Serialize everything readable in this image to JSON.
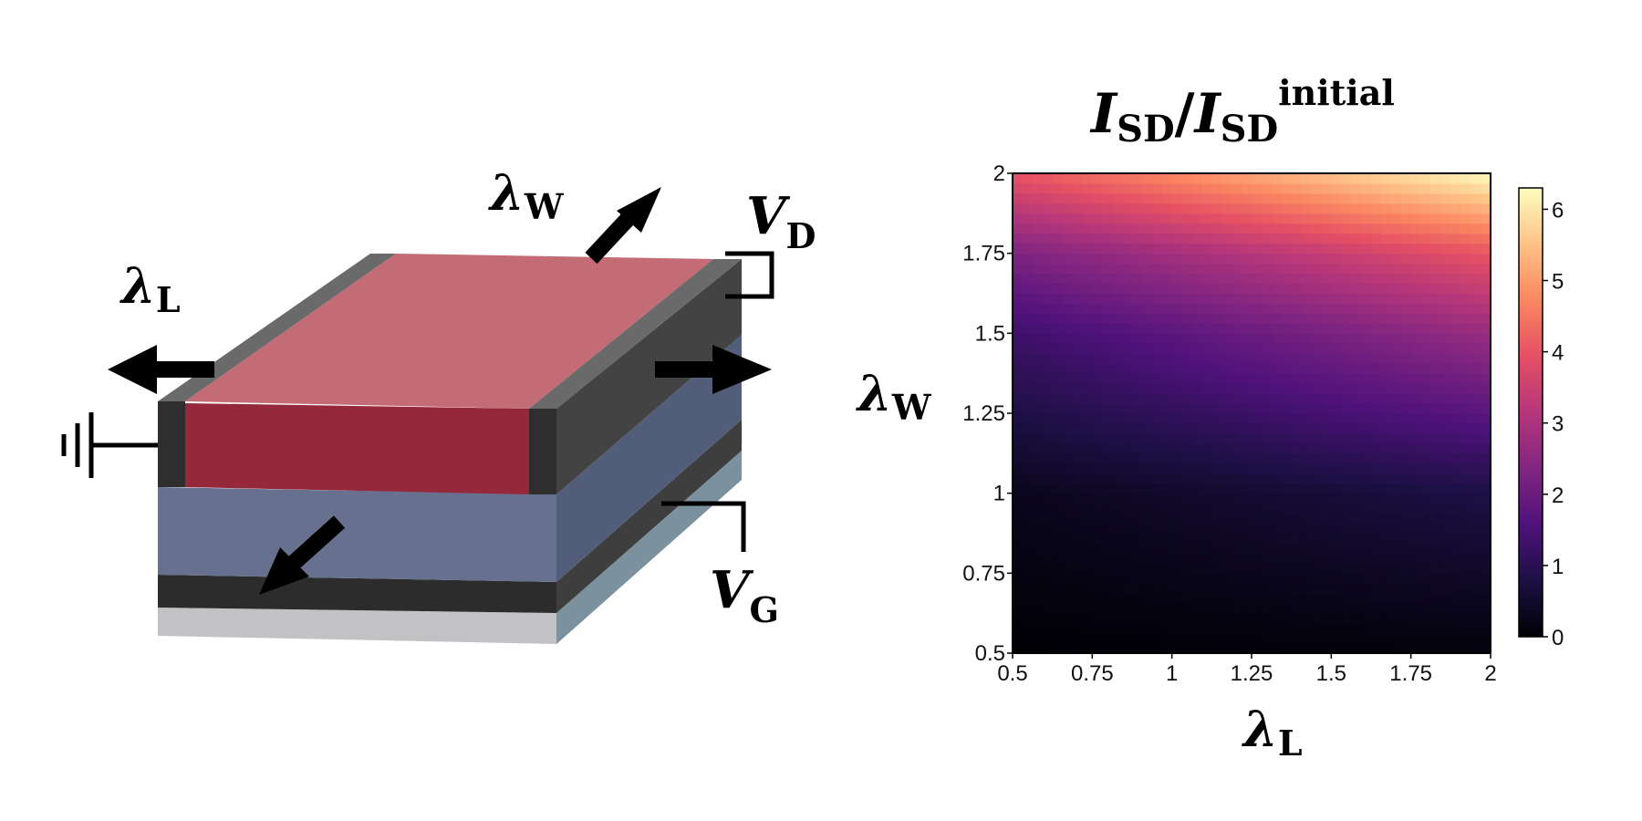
{
  "device": {
    "lambda_L": {
      "main": "λ",
      "sub": "L"
    },
    "lambda_W": {
      "main": "λ",
      "sub": "W"
    },
    "V_D": {
      "main": "V",
      "sub": "D"
    },
    "V_G": {
      "main": "V",
      "sub": "G"
    }
  },
  "heatmap": {
    "title": {
      "num": "I",
      "num_sub": "SD",
      "slash": "/",
      "den": "I",
      "den_sub": "SD",
      "den_sup": "initial"
    },
    "ylabel": {
      "main": "λ",
      "sub": "W"
    },
    "xlabel": {
      "main": "λ",
      "sub": "L"
    },
    "x_ticks": [
      "0.5",
      "0.75",
      "1",
      "1.25",
      "1.5",
      "1.75",
      "2"
    ],
    "y_ticks": [
      "0.5",
      "0.75",
      "1",
      "1.25",
      "1.5",
      "1.75",
      "2"
    ],
    "colorbar_ticks": [
      "0",
      "1",
      "2",
      "3",
      "4",
      "5",
      "6"
    ]
  },
  "chart_data": {
    "type": "heatmap",
    "x_range": [
      0.5,
      2
    ],
    "y_range": [
      0.5,
      2
    ],
    "color_range": [
      0,
      6.3
    ],
    "colormap": "magma",
    "samples": [
      {
        "x": 0.5,
        "y": 0.5,
        "value": 0.0
      },
      {
        "x": 2,
        "y": 0.5,
        "value": 0.1
      },
      {
        "x": 0.5,
        "y": 1,
        "value": 0.3
      },
      {
        "x": 2,
        "y": 1,
        "value": 0.8
      },
      {
        "x": 0.5,
        "y": 1.5,
        "value": 1.3
      },
      {
        "x": 2,
        "y": 1.5,
        "value": 2.7
      },
      {
        "x": 0.5,
        "y": 1.75,
        "value": 2.3
      },
      {
        "x": 2,
        "y": 1.75,
        "value": 4.0
      },
      {
        "x": 0.5,
        "y": 2,
        "value": 4.0
      },
      {
        "x": 2,
        "y": 2,
        "value": 6.3
      }
    ]
  }
}
